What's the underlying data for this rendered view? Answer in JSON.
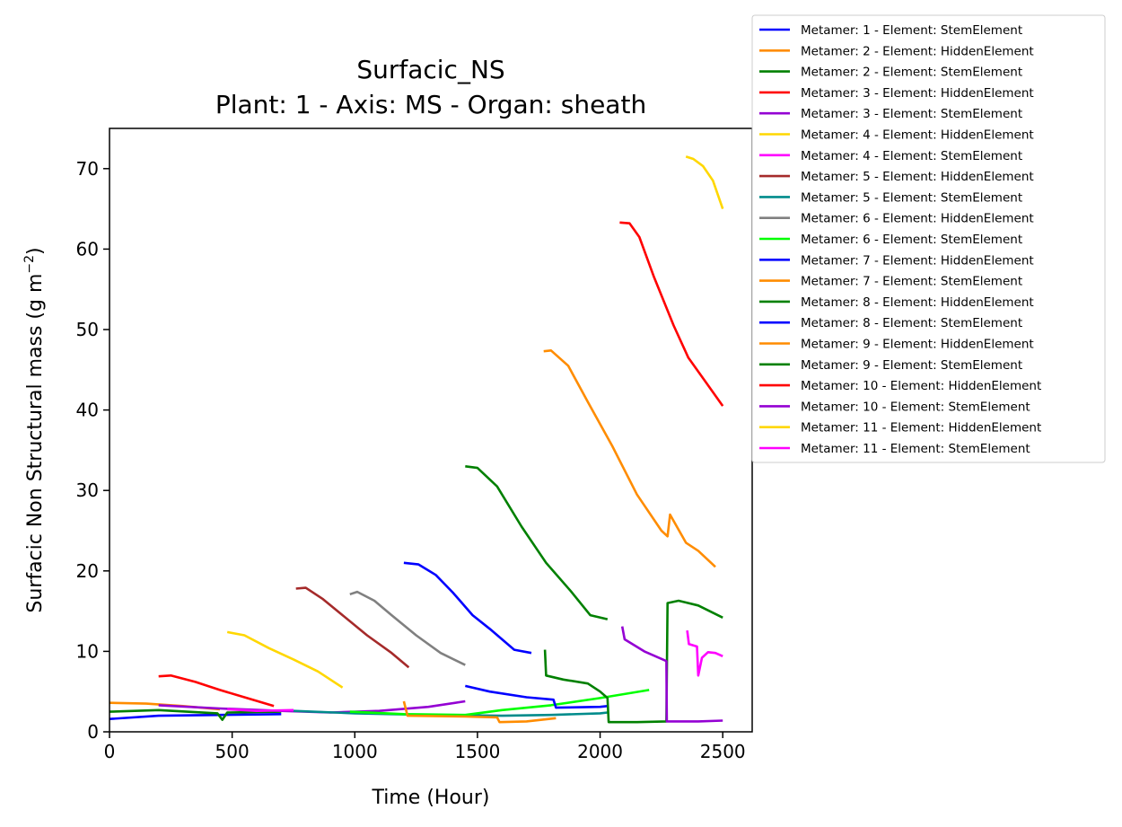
{
  "chart_data": {
    "type": "line",
    "title_line1": "Surfacic_NS",
    "title_line2": "Plant: 1 - Axis: MS - Organ: sheath",
    "xlabel": "Time (Hour)",
    "ylabel_main": "Surfacic Non Structural mass (g m",
    "ylabel_sup": "−2",
    "ylabel_end": ")",
    "xlim": [
      0,
      2620
    ],
    "ylim": [
      0,
      75
    ],
    "xticks": [
      0,
      500,
      1000,
      1500,
      2000,
      2500
    ],
    "xtick_labels": [
      "0",
      "500",
      "1000",
      "1500",
      "2000",
      "2500"
    ],
    "yticks": [
      0,
      10,
      20,
      30,
      40,
      50,
      60,
      70
    ],
    "ytick_labels": [
      "0",
      "10",
      "20",
      "30",
      "40",
      "50",
      "60",
      "70"
    ],
    "legend_position": "outside-top-right",
    "series": [
      {
        "name": "Metamer: 1 - Element: StemElement",
        "color": "#0000ff",
        "points": [
          [
            0,
            1.6
          ],
          [
            200,
            2.0
          ],
          [
            450,
            2.1
          ],
          [
            700,
            2.2
          ]
        ]
      },
      {
        "name": "Metamer: 2 - Element: HiddenElement",
        "color": "#ff8c00",
        "points": [
          [
            0,
            3.6
          ],
          [
            150,
            3.5
          ],
          [
            300,
            3.2
          ],
          [
            450,
            2.8
          ]
        ]
      },
      {
        "name": "Metamer: 2 - Element: StemElement",
        "color": "#008000",
        "points": [
          [
            0,
            2.5
          ],
          [
            200,
            2.7
          ],
          [
            440,
            2.3
          ],
          [
            460,
            1.5
          ],
          [
            480,
            2.4
          ],
          [
            700,
            2.5
          ]
        ]
      },
      {
        "name": "Metamer: 3 - Element: HiddenElement",
        "color": "#ff0000",
        "points": [
          [
            200,
            6.9
          ],
          [
            250,
            7.0
          ],
          [
            350,
            6.2
          ],
          [
            450,
            5.2
          ],
          [
            550,
            4.3
          ],
          [
            670,
            3.2
          ]
        ]
      },
      {
        "name": "Metamer: 3 - Element: StemElement",
        "color": "#9400d3",
        "points": [
          [
            200,
            3.3
          ],
          [
            450,
            2.9
          ],
          [
            700,
            2.6
          ],
          [
            900,
            2.4
          ],
          [
            1100,
            2.6
          ],
          [
            1300,
            3.1
          ],
          [
            1450,
            3.8
          ]
        ]
      },
      {
        "name": "Metamer: 4 - Element: HiddenElement",
        "color": "#ffd700",
        "points": [
          [
            480,
            12.4
          ],
          [
            550,
            12.0
          ],
          [
            650,
            10.4
          ],
          [
            750,
            9.0
          ],
          [
            850,
            7.5
          ],
          [
            950,
            5.5
          ]
        ]
      },
      {
        "name": "Metamer: 4 - Element: StemElement",
        "color": "#ff00ff",
        "points": [
          [
            480,
            2.8
          ],
          [
            600,
            2.6
          ],
          [
            750,
            2.7
          ]
        ]
      },
      {
        "name": "Metamer: 5 - Element: HiddenElement",
        "color": "#a52a2a",
        "points": [
          [
            760,
            17.8
          ],
          [
            800,
            17.9
          ],
          [
            870,
            16.5
          ],
          [
            950,
            14.5
          ],
          [
            1050,
            12.0
          ],
          [
            1150,
            9.8
          ],
          [
            1220,
            8.0
          ]
        ]
      },
      {
        "name": "Metamer: 5 - Element: StemElement",
        "color": "#008b8b",
        "points": [
          [
            750,
            2.6
          ],
          [
            1000,
            2.3
          ],
          [
            1300,
            2.1
          ],
          [
            1600,
            2.0
          ],
          [
            1800,
            2.1
          ],
          [
            2000,
            2.3
          ],
          [
            2030,
            2.4
          ]
        ]
      },
      {
        "name": "Metamer: 6 - Element: HiddenElement",
        "color": "#808080",
        "points": [
          [
            980,
            17.1
          ],
          [
            1010,
            17.4
          ],
          [
            1080,
            16.3
          ],
          [
            1150,
            14.5
          ],
          [
            1250,
            12.0
          ],
          [
            1350,
            9.8
          ],
          [
            1450,
            8.3
          ]
        ]
      },
      {
        "name": "Metamer: 6 - Element: StemElement",
        "color": "#00ff00",
        "points": [
          [
            980,
            2.5
          ],
          [
            1200,
            2.2
          ],
          [
            1450,
            2.1
          ],
          [
            1600,
            2.7
          ],
          [
            1800,
            3.3
          ],
          [
            2000,
            4.2
          ],
          [
            2200,
            5.2
          ]
        ]
      },
      {
        "name": "Metamer: 7 - Element: HiddenElement",
        "color": "#0000ff",
        "points": [
          [
            1200,
            21.0
          ],
          [
            1260,
            20.8
          ],
          [
            1330,
            19.5
          ],
          [
            1400,
            17.3
          ],
          [
            1480,
            14.5
          ],
          [
            1550,
            12.8
          ],
          [
            1650,
            10.2
          ],
          [
            1720,
            9.8
          ]
        ]
      },
      {
        "name": "Metamer: 7 - Element: StemElement",
        "color": "#ff8c00",
        "points": [
          [
            1200,
            3.8
          ],
          [
            1215,
            2.0
          ],
          [
            1450,
            1.9
          ],
          [
            1580,
            1.8
          ],
          [
            1590,
            1.2
          ],
          [
            1700,
            1.3
          ],
          [
            1820,
            1.7
          ]
        ]
      },
      {
        "name": "Metamer: 8 - Element: HiddenElement",
        "color": "#008000",
        "points": [
          [
            1450,
            33.0
          ],
          [
            1500,
            32.8
          ],
          [
            1580,
            30.5
          ],
          [
            1680,
            25.5
          ],
          [
            1780,
            21.0
          ],
          [
            1880,
            17.5
          ],
          [
            1960,
            14.5
          ],
          [
            2030,
            14.0
          ]
        ]
      },
      {
        "name": "Metamer: 8 - Element: StemElement",
        "color": "#0000ff",
        "points": [
          [
            1450,
            5.7
          ],
          [
            1550,
            5.0
          ],
          [
            1700,
            4.3
          ],
          [
            1810,
            4.0
          ],
          [
            1820,
            3.0
          ],
          [
            2000,
            3.1
          ],
          [
            2030,
            3.2
          ]
        ]
      },
      {
        "name": "Metamer: 9 - Element: HiddenElement",
        "color": "#ff8c00",
        "points": [
          [
            1770,
            47.3
          ],
          [
            1800,
            47.4
          ],
          [
            1870,
            45.5
          ],
          [
            1950,
            41.0
          ],
          [
            2050,
            35.5
          ],
          [
            2150,
            29.5
          ],
          [
            2250,
            25.0
          ],
          [
            2275,
            24.3
          ],
          [
            2285,
            27.0
          ],
          [
            2350,
            23.5
          ],
          [
            2400,
            22.5
          ],
          [
            2470,
            20.5
          ]
        ]
      },
      {
        "name": "Metamer: 9 - Element: StemElement",
        "color": "#008000",
        "points": [
          [
            1775,
            10.2
          ],
          [
            1780,
            7.0
          ],
          [
            1850,
            6.5
          ],
          [
            1950,
            6.0
          ],
          [
            2000,
            5.0
          ],
          [
            2030,
            4.2
          ],
          [
            2035,
            1.2
          ],
          [
            2150,
            1.2
          ],
          [
            2270,
            1.3
          ],
          [
            2275,
            16.0
          ],
          [
            2320,
            16.3
          ],
          [
            2400,
            15.7
          ],
          [
            2500,
            14.2
          ]
        ]
      },
      {
        "name": "Metamer: 10 - Element: HiddenElement",
        "color": "#ff0000",
        "points": [
          [
            2080,
            63.3
          ],
          [
            2120,
            63.2
          ],
          [
            2160,
            61.5
          ],
          [
            2220,
            56.5
          ],
          [
            2300,
            50.5
          ],
          [
            2360,
            46.5
          ],
          [
            2430,
            43.5
          ],
          [
            2500,
            40.5
          ]
        ]
      },
      {
        "name": "Metamer: 10 - Element: StemElement",
        "color": "#9400d3",
        "points": [
          [
            2090,
            13.1
          ],
          [
            2100,
            11.5
          ],
          [
            2180,
            10.0
          ],
          [
            2270,
            8.8
          ],
          [
            2272,
            1.3
          ],
          [
            2400,
            1.3
          ],
          [
            2500,
            1.4
          ]
        ]
      },
      {
        "name": "Metamer: 11 - Element: HiddenElement",
        "color": "#ffd700",
        "points": [
          [
            2350,
            71.5
          ],
          [
            2380,
            71.2
          ],
          [
            2420,
            70.3
          ],
          [
            2460,
            68.5
          ],
          [
            2500,
            65.0
          ]
        ]
      },
      {
        "name": "Metamer: 11 - Element: StemElement",
        "color": "#ff00ff",
        "points": [
          [
            2355,
            12.6
          ],
          [
            2362,
            10.9
          ],
          [
            2395,
            10.6
          ],
          [
            2400,
            7.0
          ],
          [
            2415,
            9.2
          ],
          [
            2440,
            9.9
          ],
          [
            2470,
            9.8
          ],
          [
            2500,
            9.4
          ]
        ]
      }
    ]
  }
}
